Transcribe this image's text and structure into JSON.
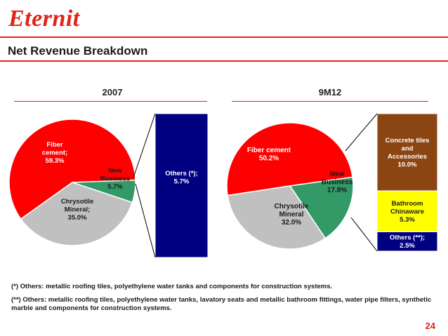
{
  "header": {
    "logo_text": "Eternit",
    "title": "Net Revenue Breakdown"
  },
  "chart_data": [
    {
      "type": "pie",
      "title": "2007",
      "slices": [
        {
          "label": "Fiber cement;",
          "value": 59.3,
          "value_text": "59.3%",
          "color": "#ff0000"
        },
        {
          "label": "New Business",
          "value": 5.7,
          "value_text": "5.7%",
          "color": "#339966"
        },
        {
          "label": "Chrysotile Mineral;",
          "value": 35.0,
          "value_text": "35.0%",
          "color": "#c0c0c0"
        }
      ],
      "breakdown_of": "New Business",
      "breakdown": [
        {
          "label": "Others (*);",
          "value": 5.7,
          "value_text": "5.7%",
          "color": "#000080"
        }
      ]
    },
    {
      "type": "pie",
      "title": "9M12",
      "slices": [
        {
          "label": "Fiber cement",
          "value": 50.2,
          "value_text": "50.2%",
          "color": "#ff0000"
        },
        {
          "label": "New Business",
          "value": 17.8,
          "value_text": "17.8%",
          "color": "#339966"
        },
        {
          "label": "Chrysotile Mineral",
          "value": 32.0,
          "value_text": "32.0%",
          "color": "#c0c0c0"
        }
      ],
      "breakdown_of": "New Business",
      "breakdown": [
        {
          "label": "Concrete tiles and Accessories",
          "value": 10.0,
          "value_text": "10.0%",
          "color": "#8b4513"
        },
        {
          "label": "Bathroom Chinaware",
          "value": 5.3,
          "value_text": "5.3%",
          "color": "#ffff00"
        },
        {
          "label": "Others (**);",
          "value": 2.5,
          "value_text": "2.5%",
          "color": "#000080"
        }
      ]
    }
  ],
  "footnotes": {
    "note1": "(*) Others: metallic roofing tiles, polyethylene water tanks and components for construction systems.",
    "note2": "(**) Others: metallic roofing tiles, polyethylene water tanks, lavatory seats and metallic bathroom fittings, water pipe filters, synthetic marble and components for construction systems."
  },
  "page_number": "24",
  "colors": {
    "accent": "#e2231a"
  }
}
